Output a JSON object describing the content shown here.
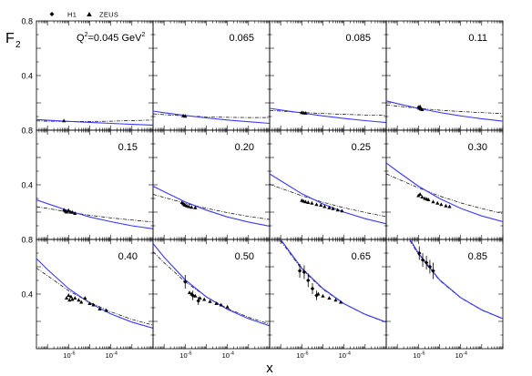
{
  "chart_data": {
    "type": "scatter",
    "layout": "3x4 grid of panels",
    "xlabel": "x",
    "ylabel": "F",
    "ylabel_sub": "2",
    "xscale": "log",
    "xlim": [
      3e-08,
      0.01
    ],
    "ylim": [
      0,
      0.8
    ],
    "x_tick_labels": [
      {
        "base": "10",
        "exp": "-6",
        "value": 1e-06
      },
      {
        "base": "10",
        "exp": "-4",
        "value": 0.0001
      }
    ],
    "y_ticks": [
      {
        "label": "0.8",
        "value": 0.8
      },
      {
        "label": "0.4",
        "value": 0.4
      }
    ],
    "legend": [
      {
        "label": "H1",
        "marker": "diamond"
      },
      {
        "label": "ZEUS",
        "marker": "triangle"
      }
    ],
    "curves": [
      {
        "style": "solid",
        "color": "#3a3aff"
      },
      {
        "style": "dash-dot",
        "color": "#000000"
      }
    ],
    "panels": [
      {
        "label": "Q²=0.045 GeV²",
        "label_main": "Q",
        "label_sup1": "2",
        "label_mid": "=0.045 GeV",
        "label_sup2": "2",
        "solid": [
          [
            3e-08,
            0.078
          ],
          [
            1e-07,
            0.073
          ],
          [
            1e-06,
            0.065
          ],
          [
            1e-05,
            0.057
          ],
          [
            0.0001,
            0.05
          ],
          [
            0.001,
            0.043
          ],
          [
            0.01,
            0.037
          ]
        ],
        "dashdot": [
          [
            3e-08,
            0.068
          ],
          [
            1e-07,
            0.066
          ],
          [
            1e-06,
            0.064
          ],
          [
            1e-05,
            0.064
          ],
          [
            0.0001,
            0.066
          ],
          [
            0.001,
            0.07
          ],
          [
            0.01,
            0.075
          ]
        ],
        "h1": [],
        "zeus": [
          [
            6e-07,
            0.068
          ]
        ]
      },
      {
        "label": "0.065",
        "solid": [
          [
            3e-08,
            0.14
          ],
          [
            1e-07,
            0.128
          ],
          [
            1e-06,
            0.108
          ],
          [
            1e-05,
            0.09
          ],
          [
            0.0001,
            0.075
          ],
          [
            0.001,
            0.062
          ],
          [
            0.01,
            0.05
          ]
        ],
        "dashdot": [
          [
            3e-08,
            0.12
          ],
          [
            1e-07,
            0.114
          ],
          [
            1e-06,
            0.105
          ],
          [
            1e-05,
            0.098
          ],
          [
            0.0001,
            0.094
          ],
          [
            0.001,
            0.093
          ],
          [
            0.01,
            0.093
          ]
        ],
        "h1": [],
        "zeus": [
          [
            8e-07,
            0.105
          ],
          [
            1e-06,
            0.102
          ]
        ]
      },
      {
        "label": "0.085",
        "solid": [
          [
            3e-08,
            0.16
          ],
          [
            1e-07,
            0.148
          ],
          [
            1e-06,
            0.126
          ],
          [
            1e-05,
            0.105
          ],
          [
            0.0001,
            0.086
          ],
          [
            0.001,
            0.07
          ],
          [
            0.01,
            0.056
          ]
        ],
        "dashdot": [
          [
            3e-08,
            0.145
          ],
          [
            1e-07,
            0.14
          ],
          [
            1e-06,
            0.13
          ],
          [
            1e-05,
            0.122
          ],
          [
            0.0001,
            0.116
          ],
          [
            0.001,
            0.111
          ],
          [
            0.01,
            0.108
          ]
        ],
        "h1": [],
        "zeus": [
          [
            1e-06,
            0.128
          ],
          [
            1.2e-06,
            0.126
          ],
          [
            1.5e-06,
            0.124
          ]
        ]
      },
      {
        "label": "0.11",
        "solid": [
          [
            3e-08,
            0.215
          ],
          [
            1e-07,
            0.195
          ],
          [
            1e-06,
            0.16
          ],
          [
            1e-05,
            0.13
          ],
          [
            0.0001,
            0.105
          ],
          [
            0.001,
            0.084
          ],
          [
            0.01,
            0.066
          ]
        ],
        "dashdot": [
          [
            3e-08,
            0.185
          ],
          [
            1e-07,
            0.177
          ],
          [
            1e-06,
            0.16
          ],
          [
            1e-05,
            0.147
          ],
          [
            0.0001,
            0.137
          ],
          [
            0.001,
            0.129
          ],
          [
            0.01,
            0.122
          ]
        ],
        "h1": [],
        "zeus": [
          [
            1e-06,
            0.168
          ],
          [
            1.1e-06,
            0.16
          ],
          [
            1.3e-06,
            0.155
          ],
          [
            1.5e-06,
            0.15
          ],
          [
            1.2e-06,
            0.172
          ]
        ]
      },
      {
        "label": "0.15",
        "solid": [
          [
            3e-08,
            0.29
          ],
          [
            1e-07,
            0.262
          ],
          [
            1e-06,
            0.21
          ],
          [
            1e-05,
            0.165
          ],
          [
            0.0001,
            0.13
          ],
          [
            0.001,
            0.1
          ],
          [
            0.01,
            0.078
          ]
        ],
        "dashdot": [
          [
            3e-08,
            0.24
          ],
          [
            1e-07,
            0.227
          ],
          [
            1e-06,
            0.2
          ],
          [
            1e-05,
            0.177
          ],
          [
            0.0001,
            0.158
          ],
          [
            0.001,
            0.142
          ],
          [
            0.01,
            0.128
          ]
        ],
        "h1": [],
        "zeus": [
          [
            6e-07,
            0.215
          ],
          [
            7e-07,
            0.207
          ],
          [
            8e-07,
            0.2
          ],
          [
            1e-06,
            0.212
          ],
          [
            1.2e-06,
            0.2
          ],
          [
            1.5e-06,
            0.198
          ],
          [
            2e-06,
            0.19
          ]
        ]
      },
      {
        "label": "0.20",
        "solid": [
          [
            3e-08,
            0.39
          ],
          [
            1e-07,
            0.35
          ],
          [
            1e-06,
            0.275
          ],
          [
            1e-05,
            0.215
          ],
          [
            0.0001,
            0.165
          ],
          [
            0.001,
            0.127
          ],
          [
            0.01,
            0.097
          ]
        ],
        "dashdot": [
          [
            3e-08,
            0.33
          ],
          [
            1e-07,
            0.308
          ],
          [
            1e-06,
            0.265
          ],
          [
            1e-05,
            0.228
          ],
          [
            0.0001,
            0.196
          ],
          [
            0.001,
            0.169
          ],
          [
            0.01,
            0.146
          ]
        ],
        "h1": [],
        "zeus": [
          [
            7e-07,
            0.27
          ],
          [
            8e-07,
            0.262
          ],
          [
            9e-07,
            0.255
          ],
          [
            1e-06,
            0.25
          ],
          [
            1.2e-06,
            0.245
          ],
          [
            1.5e-06,
            0.24
          ],
          [
            2e-06,
            0.235
          ],
          [
            3e-06,
            0.232
          ]
        ]
      },
      {
        "label": "0.25",
        "solid": [
          [
            3e-08,
            0.48
          ],
          [
            1e-07,
            0.43
          ],
          [
            1e-06,
            0.335
          ],
          [
            1e-05,
            0.26
          ],
          [
            0.0001,
            0.2
          ],
          [
            0.001,
            0.152
          ],
          [
            0.01,
            0.115
          ]
        ],
        "dashdot": [
          [
            3e-08,
            0.405
          ],
          [
            1e-07,
            0.375
          ],
          [
            1e-06,
            0.32
          ],
          [
            1e-05,
            0.273
          ],
          [
            0.0001,
            0.232
          ],
          [
            0.001,
            0.197
          ],
          [
            0.01,
            0.167
          ]
        ],
        "h1": [],
        "zeus": [
          [
            1e-06,
            0.285
          ],
          [
            1.2e-06,
            0.28
          ],
          [
            1.5e-06,
            0.275
          ],
          [
            2e-06,
            0.27
          ],
          [
            3e-06,
            0.265
          ],
          [
            5e-06,
            0.255
          ],
          [
            8e-06,
            0.25
          ],
          [
            1.2e-05,
            0.24
          ],
          [
            2e-05,
            0.232
          ],
          [
            3e-05,
            0.225
          ],
          [
            5e-05,
            0.215
          ],
          [
            8e-05,
            0.208
          ]
        ]
      },
      {
        "label": "0.30",
        "solid": [
          [
            3e-08,
            0.56
          ],
          [
            1e-07,
            0.5
          ],
          [
            1e-06,
            0.39
          ],
          [
            1e-05,
            0.3
          ],
          [
            0.0001,
            0.228
          ],
          [
            0.001,
            0.172
          ],
          [
            0.01,
            0.13
          ]
        ],
        "dashdot": [
          [
            3e-08,
            0.48
          ],
          [
            1e-07,
            0.445
          ],
          [
            1e-06,
            0.378
          ],
          [
            1e-05,
            0.318
          ],
          [
            0.0001,
            0.268
          ],
          [
            0.001,
            0.226
          ],
          [
            0.01,
            0.19
          ]
        ],
        "h1": [],
        "zeus": [
          [
            1e-06,
            0.32
          ],
          [
            1.2e-06,
            0.33
          ],
          [
            1.5e-06,
            0.31
          ],
          [
            2e-06,
            0.3
          ],
          [
            2.5e-06,
            0.295
          ],
          [
            3e-06,
            0.29
          ],
          [
            5e-06,
            0.275
          ],
          [
            8e-06,
            0.265
          ],
          [
            1.2e-05,
            0.255
          ],
          [
            2e-05,
            0.245
          ],
          [
            3e-05,
            0.24
          ]
        ]
      },
      {
        "label": "0.40",
        "solid": [
          [
            3e-08,
            0.66
          ],
          [
            1e-07,
            0.58
          ],
          [
            1e-06,
            0.44
          ],
          [
            1e-05,
            0.335
          ],
          [
            0.0001,
            0.255
          ],
          [
            0.001,
            0.195
          ],
          [
            0.01,
            0.15
          ]
        ],
        "dashdot": [
          [
            3e-08,
            0.59
          ],
          [
            1e-07,
            0.535
          ],
          [
            1e-06,
            0.425
          ],
          [
            1e-05,
            0.34
          ],
          [
            0.0001,
            0.27
          ],
          [
            0.001,
            0.215
          ],
          [
            0.01,
            0.172
          ]
        ],
        "h1": [],
        "zeus": [
          [
            8e-07,
            0.37
          ],
          [
            1e-06,
            0.39
          ],
          [
            1.1e-06,
            0.355
          ],
          [
            1.3e-06,
            0.38
          ],
          [
            1.5e-06,
            0.36
          ],
          [
            2e-06,
            0.37
          ],
          [
            3e-06,
            0.355
          ],
          [
            4e-06,
            0.34
          ],
          [
            6e-06,
            0.37
          ],
          [
            1e-05,
            0.33
          ],
          [
            1.5e-05,
            0.32
          ],
          [
            3e-05,
            0.29
          ],
          [
            6e-05,
            0.28
          ]
        ]
      },
      {
        "label": "0.50",
        "solid": [
          [
            3e-08,
            0.77
          ],
          [
            1e-07,
            0.67
          ],
          [
            1e-06,
            0.505
          ],
          [
            1e-05,
            0.38
          ],
          [
            0.0001,
            0.288
          ],
          [
            0.001,
            0.22
          ],
          [
            0.01,
            0.168
          ]
        ],
        "dashdot": [
          [
            3e-08,
            0.71
          ],
          [
            1e-07,
            0.63
          ],
          [
            1e-06,
            0.49
          ],
          [
            1e-05,
            0.38
          ],
          [
            0.0001,
            0.295
          ],
          [
            0.001,
            0.23
          ],
          [
            0.01,
            0.18
          ]
        ],
        "h1": [
          {
            "x": 1e-06,
            "y": 0.49,
            "err": 0.05
          },
          {
            "x": 2.3e-06,
            "y": 0.39,
            "err": 0.035
          },
          {
            "x": 4.2e-06,
            "y": 0.35,
            "err": 0.03
          }
        ],
        "zeus": [
          [
            1.6e-06,
            0.41
          ],
          [
            2e-06,
            0.4
          ],
          [
            3e-06,
            0.385
          ],
          [
            5e-06,
            0.37
          ],
          [
            8e-06,
            0.36
          ],
          [
            1.5e-05,
            0.345
          ],
          [
            3e-05,
            0.33
          ],
          [
            5e-05,
            0.32
          ],
          [
            0.0001,
            0.305
          ]
        ]
      },
      {
        "label": "0.65",
        "solid": [
          [
            1e-07,
            0.8
          ],
          [
            1e-06,
            0.59
          ],
          [
            1e-05,
            0.44
          ],
          [
            0.0001,
            0.33
          ],
          [
            0.001,
            0.252
          ],
          [
            0.01,
            0.195
          ]
        ],
        "dashdot": [
          [
            1e-07,
            0.79
          ],
          [
            1e-06,
            0.58
          ],
          [
            1e-05,
            0.435
          ],
          [
            0.0001,
            0.328
          ],
          [
            0.001,
            0.25
          ],
          [
            0.01,
            0.192
          ]
        ],
        "h1": [
          {
            "x": 8e-07,
            "y": 0.57,
            "err": 0.05
          },
          {
            "x": 1.3e-06,
            "y": 0.56,
            "err": 0.05
          },
          {
            "x": 2e-06,
            "y": 0.5,
            "err": 0.05
          },
          {
            "x": 3.2e-06,
            "y": 0.44,
            "err": 0.04
          },
          {
            "x": 5e-06,
            "y": 0.39,
            "err": 0.035
          }
        ],
        "zeus": [
          [
            6e-06,
            0.4
          ],
          [
            1e-05,
            0.385
          ],
          [
            2e-05,
            0.37
          ],
          [
            4e-05,
            0.355
          ],
          [
            7e-05,
            0.34
          ]
        ]
      },
      {
        "label": "0.85",
        "solid": [
          [
            4e-07,
            0.8
          ],
          [
            1e-06,
            0.7
          ],
          [
            1e-05,
            0.505
          ],
          [
            0.0001,
            0.375
          ],
          [
            0.001,
            0.284
          ],
          [
            0.01,
            0.22
          ]
        ],
        "dashdot": [
          [
            4e-07,
            0.79
          ],
          [
            1e-06,
            0.69
          ],
          [
            1e-05,
            0.5
          ],
          [
            0.0001,
            0.372
          ],
          [
            0.001,
            0.282
          ],
          [
            0.01,
            0.218
          ]
        ],
        "h1": [
          {
            "x": 1.1e-06,
            "y": 0.7,
            "err": 0.05
          },
          {
            "x": 1.6e-06,
            "y": 0.65,
            "err": 0.05
          },
          {
            "x": 2.4e-06,
            "y": 0.63,
            "err": 0.05
          },
          {
            "x": 3.5e-06,
            "y": 0.6,
            "err": 0.05
          },
          {
            "x": 5e-06,
            "y": 0.57,
            "err": 0.06
          }
        ],
        "zeus": []
      }
    ]
  }
}
